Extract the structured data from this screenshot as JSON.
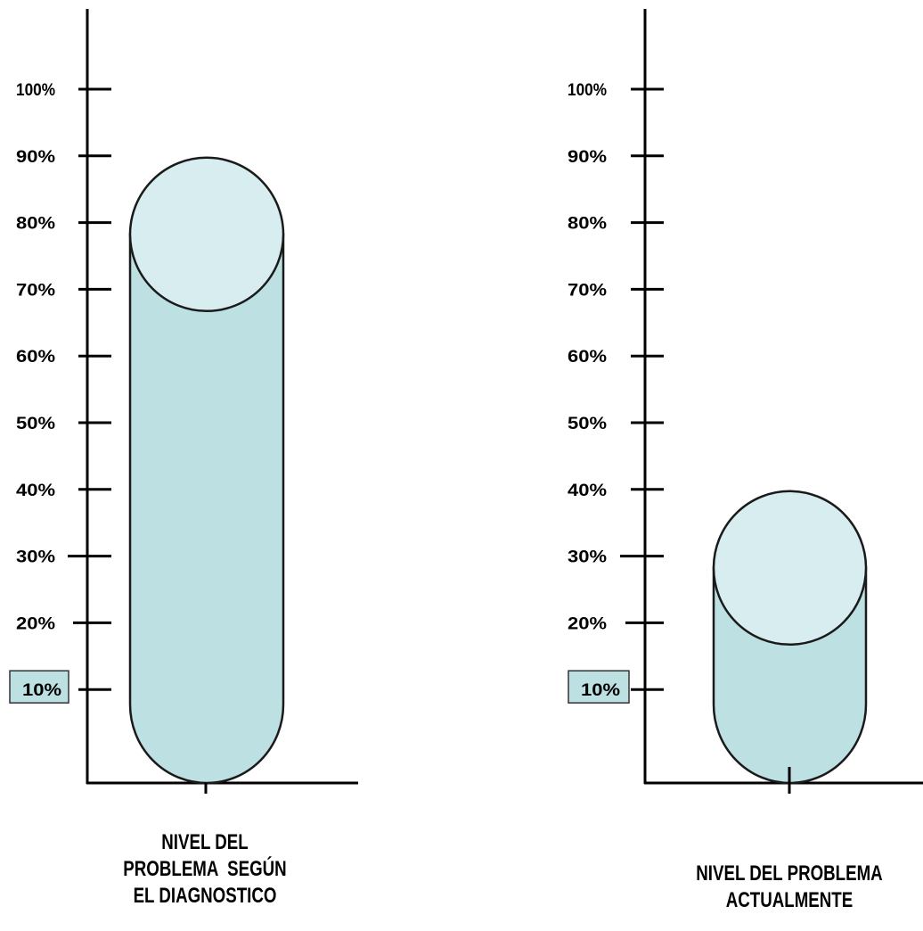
{
  "chart_data": [
    {
      "type": "bar",
      "style": "cylinder",
      "categories": [
        "NIVEL DEL PROBLEMA SEGÚN EL DIAGNOSTICO"
      ],
      "values": [
        90
      ],
      "y_ticks": [
        "10%",
        "20%",
        "30%",
        "40%",
        "50%",
        "60%",
        "70%",
        "80%",
        "90%",
        "100%"
      ],
      "highlighted_tick": "10%",
      "ylim": [
        0,
        100
      ],
      "xlabel_lines": [
        "NIVEL DEL",
        "PROBLEMA  SEGÚN",
        "EL DIAGNOSTICO"
      ],
      "grid": false
    },
    {
      "type": "bar",
      "style": "cylinder",
      "categories": [
        "NIVEL DEL PROBLEMA ACTUALMENTE"
      ],
      "values": [
        40
      ],
      "y_ticks": [
        "10%",
        "20%",
        "30%",
        "40%",
        "50%",
        "60%",
        "70%",
        "80%",
        "90%",
        "100%"
      ],
      "highlighted_tick": "10%",
      "ylim": [
        0,
        100
      ],
      "xlabel_lines": [
        "NIVEL DEL PROBLEMA",
        "ACTUALMENTE"
      ],
      "grid": false
    }
  ],
  "colors": {
    "cylinder_body": "#bde0e3",
    "cylinder_top": "#d8edef",
    "highlight_box": "#bde0e3",
    "axis": "#000000"
  }
}
